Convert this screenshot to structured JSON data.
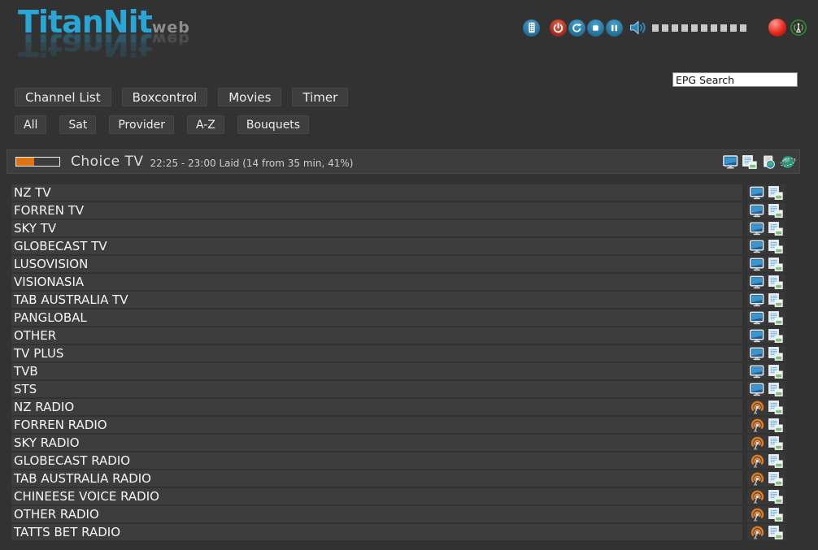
{
  "app": {
    "title": "TitanNit",
    "subtitle": "web"
  },
  "topbar": {
    "buttons": [
      {
        "name": "remote-control",
        "color": "#2b7da8"
      },
      {
        "name": "power",
        "color": "#c03a28"
      },
      {
        "name": "restart",
        "color": "#2b7da8"
      },
      {
        "name": "stop",
        "color": "#2b7da8"
      },
      {
        "name": "pause",
        "color": "#2b7da8"
      }
    ],
    "volume": {
      "icon": "speaker-icon",
      "blocks": 10,
      "block_color": "#c9c9c9"
    },
    "status": [
      {
        "name": "record-indicator",
        "color": "#e8271a"
      },
      {
        "name": "signal-antenna",
        "color": "#2f8f2f"
      }
    ]
  },
  "search": {
    "value": "EPG Search"
  },
  "nav": {
    "items": [
      "Channel List",
      "Boxcontrol",
      "Movies",
      "Timer"
    ]
  },
  "filters": {
    "items": [
      "All",
      "Sat",
      "Provider",
      "A-Z",
      "Bouquets"
    ]
  },
  "now_playing": {
    "channel": "Choice TV",
    "epg": "22:25 - 23:00 Laid (14 from 35 min, 41%)",
    "progress_percent": 41,
    "progress_color": "#dd7411",
    "icons": [
      "monitor-icon",
      "epg-list-icon",
      "stream-page-icon",
      "globe-icon"
    ]
  },
  "channels": [
    {
      "name": "NZ TV",
      "type": "tv"
    },
    {
      "name": "FORREN TV",
      "type": "tv"
    },
    {
      "name": "SKY TV",
      "type": "tv"
    },
    {
      "name": "GLOBECAST TV",
      "type": "tv"
    },
    {
      "name": "LUSOVISION",
      "type": "tv"
    },
    {
      "name": "VISIONASIA",
      "type": "tv"
    },
    {
      "name": "TAB AUSTRALIA TV",
      "type": "tv"
    },
    {
      "name": "PANGLOBAL",
      "type": "tv"
    },
    {
      "name": "OTHER",
      "type": "tv"
    },
    {
      "name": "TV PLUS",
      "type": "tv"
    },
    {
      "name": "TVB",
      "type": "tv"
    },
    {
      "name": "STS",
      "type": "tv"
    },
    {
      "name": "NZ RADIO",
      "type": "radio"
    },
    {
      "name": "FORREN RADIO",
      "type": "radio"
    },
    {
      "name": "SKY RADIO",
      "type": "radio"
    },
    {
      "name": "GLOBECAST RADIO",
      "type": "radio"
    },
    {
      "name": "TAB AUSTRALIA RADIO",
      "type": "radio"
    },
    {
      "name": "CHINEESE VOICE RADIO",
      "type": "radio"
    },
    {
      "name": "OTHER RADIO",
      "type": "radio"
    },
    {
      "name": "TATTS BET RADIO",
      "type": "radio"
    }
  ],
  "colors": {
    "background": "#323232",
    "row_bg": "#3d3d3d",
    "logo_blue": "#2aa6d6",
    "orange": "#dd7411",
    "button_blue": "#2b7da8",
    "button_red": "#c03a28"
  }
}
